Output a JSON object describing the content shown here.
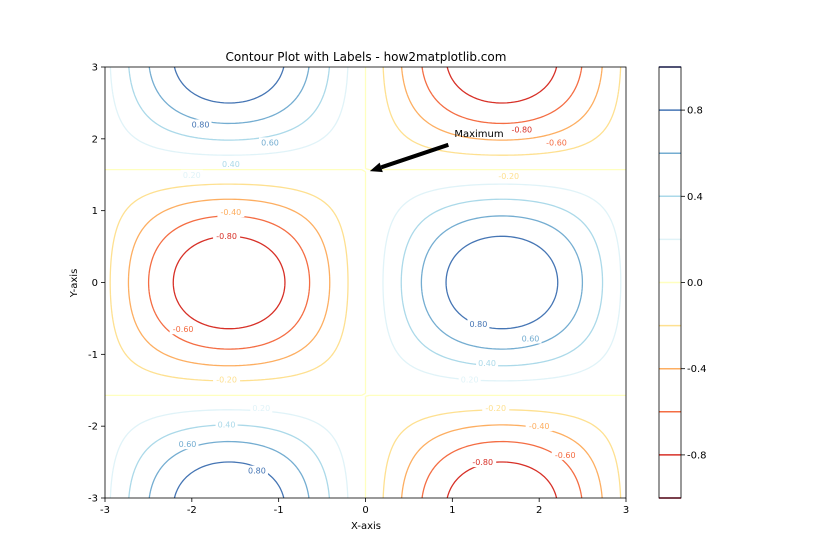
{
  "chart_data": {
    "type": "contour",
    "title": "Contour Plot with Labels - how2matplotlib.com",
    "xlabel": "X-axis",
    "ylabel": "Y-axis",
    "xlim": [
      -3,
      3
    ],
    "ylim": [
      -3,
      3
    ],
    "function": "z = sin(x) * cos(y)",
    "x_ticks": [
      -3,
      -2,
      -1,
      0,
      1,
      2,
      3
    ],
    "y_ticks": [
      -3,
      -2,
      -1,
      0,
      1,
      2,
      3
    ],
    "levels": [
      -1.0,
      -0.8,
      -0.6,
      -0.4,
      -0.2,
      0.0,
      0.2,
      0.4,
      0.6,
      0.8,
      1.0
    ],
    "level_colors": [
      "#a50026",
      "#d73027",
      "#f46d43",
      "#fdae61",
      "#fee090",
      "#ffffbf",
      "#e0f3f8",
      "#abd9e9",
      "#74add1",
      "#4575b4",
      "#313695"
    ],
    "contour_labels": [
      {
        "text": "0.80",
        "x": -1.9,
        "y": 2.2
      },
      {
        "text": "0.60",
        "x": -1.1,
        "y": 1.95
      },
      {
        "text": "0.40",
        "x": -1.55,
        "y": 1.65
      },
      {
        "text": "0.20",
        "x": -2.0,
        "y": 1.5
      },
      {
        "text": "-0.80",
        "x": 1.8,
        "y": 2.13
      },
      {
        "text": "-0.60",
        "x": 2.2,
        "y": 1.95
      },
      {
        "text": "-0.20",
        "x": 1.65,
        "y": 1.48
      },
      {
        "text": "-0.40",
        "x": -1.55,
        "y": 0.98
      },
      {
        "text": "-0.80",
        "x": -1.6,
        "y": 0.65
      },
      {
        "text": "-0.60",
        "x": -2.1,
        "y": -0.65
      },
      {
        "text": "-0.20",
        "x": -1.6,
        "y": -1.35
      },
      {
        "text": "0.80",
        "x": 1.3,
        "y": -0.58
      },
      {
        "text": "0.60",
        "x": 1.9,
        "y": -0.78
      },
      {
        "text": "0.40",
        "x": 1.4,
        "y": -1.12
      },
      {
        "text": "0.20",
        "x": 1.2,
        "y": -1.35
      },
      {
        "text": "0.20",
        "x": -1.2,
        "y": -1.75
      },
      {
        "text": "0.40",
        "x": -1.6,
        "y": -1.98
      },
      {
        "text": "0.60",
        "x": -2.05,
        "y": -2.25
      },
      {
        "text": "0.80",
        "x": -1.25,
        "y": -2.62
      },
      {
        "text": "-0.20",
        "x": 1.5,
        "y": -1.75
      },
      {
        "text": "-0.40",
        "x": 2.0,
        "y": -2.0
      },
      {
        "text": "-0.60",
        "x": 2.3,
        "y": -2.4
      },
      {
        "text": "-0.80",
        "x": 1.35,
        "y": -2.5
      }
    ],
    "annotation": {
      "text": "Maximum",
      "point": [
        0.05,
        1.55
      ],
      "text_pos": [
        1.0,
        2.0
      ]
    },
    "colorbar": {
      "ticks": [
        0.8,
        0.4,
        0.0,
        -0.4,
        -0.8
      ],
      "tick_labels": [
        "0.8",
        "0.4",
        "0.0",
        "-0.4",
        "-0.8"
      ],
      "range": [
        -1.0,
        1.0
      ],
      "colormap": "RdYlBu"
    }
  }
}
